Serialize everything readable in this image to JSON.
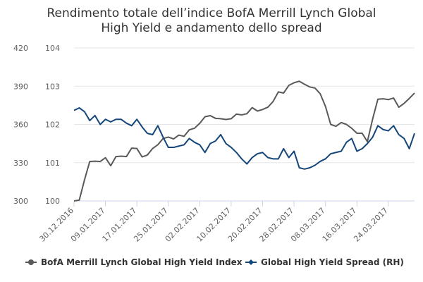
{
  "chart_data": {
    "type": "line",
    "title": "Rendimento totale dell’indice BofA Merrill Lynch Global",
    "subtitle": "High Yield e andamento dello spread",
    "x_tick_labels": [
      "30.12.2016",
      "09.01.2017",
      "17.01.2017",
      "25.01.2017",
      "02.02.2017",
      "10.02.2017",
      "20.02.2017",
      "28.02.2017",
      "08.03.2017",
      "16.03.2017",
      "24.03.2017"
    ],
    "x_tick_index": [
      0,
      6,
      12,
      18,
      24,
      30,
      36,
      42,
      48,
      54,
      60
    ],
    "x_count": 66,
    "y_left": {
      "ticks": [
        "300",
        "330",
        "360",
        "390",
        "420"
      ],
      "range": [
        300,
        420
      ]
    },
    "y_right": {
      "ticks": [
        "100",
        "101",
        "102",
        "103",
        "104"
      ],
      "range": [
        100,
        104
      ]
    },
    "grid": true,
    "legend": "bottom",
    "series": [
      {
        "name": "BofA Merrill Lynch Global High Yield Index",
        "axis": "right",
        "color": "#595959",
        "marker": "circle",
        "values": [
          100.0,
          100.02,
          100.55,
          101.03,
          101.04,
          101.03,
          101.13,
          100.92,
          101.16,
          101.17,
          101.16,
          101.38,
          101.37,
          101.15,
          101.2,
          101.37,
          101.47,
          101.63,
          101.67,
          101.62,
          101.72,
          101.69,
          101.86,
          101.9,
          102.03,
          102.2,
          102.23,
          102.16,
          102.15,
          102.13,
          102.15,
          102.27,
          102.25,
          102.28,
          102.44,
          102.35,
          102.39,
          102.45,
          102.6,
          102.85,
          102.82,
          103.02,
          103.09,
          103.13,
          103.05,
          102.98,
          102.95,
          102.8,
          102.47,
          102.0,
          101.95,
          102.05,
          102.0,
          101.9,
          101.77,
          101.77,
          101.55,
          102.14,
          102.66,
          102.67,
          102.65,
          102.69,
          102.45,
          102.55,
          102.68,
          102.82
        ]
      },
      {
        "name": "Global High Yield Spread (RH)",
        "axis": "left",
        "color": "#14467a",
        "marker": "diamond",
        "values": [
          371,
          373,
          370,
          363,
          367,
          360,
          364,
          362,
          364,
          364,
          361,
          359,
          364,
          358,
          353,
          352,
          359,
          350,
          342,
          342,
          343,
          344,
          349,
          346,
          344,
          338,
          345,
          347,
          352,
          345,
          342,
          338,
          333,
          329,
          334,
          337,
          338,
          334,
          333,
          333,
          341,
          334,
          339,
          326,
          325,
          326,
          328,
          331,
          333,
          337,
          338,
          339,
          346,
          349,
          339,
          341,
          345,
          350,
          359,
          356,
          355,
          359,
          352,
          349,
          341,
          353
        ]
      }
    ]
  }
}
